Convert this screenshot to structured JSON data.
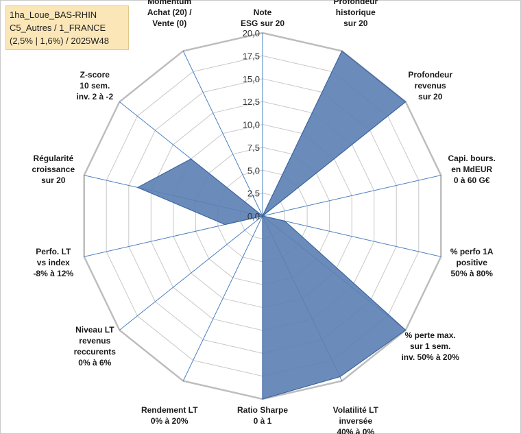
{
  "info": {
    "line1": "1ha_Loue_BAS-RHIN",
    "line2": "C5_Autres / 1_FRANCE",
    "line3": "(2,5% | 1,6%) / 2025W48"
  },
  "chart_data": {
    "type": "radar",
    "rmax": 20,
    "tick_labels": [
      "0,0",
      "2,5",
      "5,0",
      "7,5",
      "10,0",
      "12,5",
      "15,0",
      "17,5",
      "20,0"
    ],
    "axes": [
      {
        "label": [
          "Note",
          "ESG sur 20"
        ],
        "value": 0.0
      },
      {
        "label": [
          "Profondeur",
          "historique",
          "sur 20"
        ],
        "value": 20.0
      },
      {
        "label": [
          "Profondeur",
          "revenus",
          "sur 20"
        ],
        "value": 20.0
      },
      {
        "label": [
          "Capi. bours.",
          "en MdEUR",
          "0 à 60 G€"
        ],
        "value": 0.0
      },
      {
        "label": [
          "% perfo 1A",
          "positive",
          "50% à 80%"
        ],
        "value": 2.5
      },
      {
        "label": [
          "% perte max.",
          "sur 1 sem.",
          "inv. 50% à 20%"
        ],
        "value": 20.0
      },
      {
        "label": [
          "Volatilité LT",
          "inversée",
          "40% à 0%"
        ],
        "value": 19.5
      },
      {
        "label": [
          "Ratio Sharpe",
          "0 à 1"
        ],
        "value": 20.0
      },
      {
        "label": [
          "Rendement LT",
          "0% à 20%"
        ],
        "value": 0.0
      },
      {
        "label": [
          "Niveau LT",
          "revenus",
          "reccurents",
          "0% à 6%"
        ],
        "value": 0.0
      },
      {
        "label": [
          "Perfo. LT",
          "vs index",
          "-8% à 12%"
        ],
        "value": 4.2
      },
      {
        "label": [
          "Régularité",
          "croissance",
          "sur 20"
        ],
        "value": 14.0
      },
      {
        "label": [
          "Z-score",
          "10 sem.",
          "inv. 2 à -2"
        ],
        "value": 10.0
      },
      {
        "label": [
          "Momentum",
          "Achat (20) /",
          "Vente (0)"
        ],
        "value": 0.0
      }
    ],
    "colors": {
      "fill": "#5b80b4",
      "stroke": "#3d679f",
      "grid": "#c8c8c8",
      "spoke": "#4a7fc1"
    },
    "grid": true
  }
}
